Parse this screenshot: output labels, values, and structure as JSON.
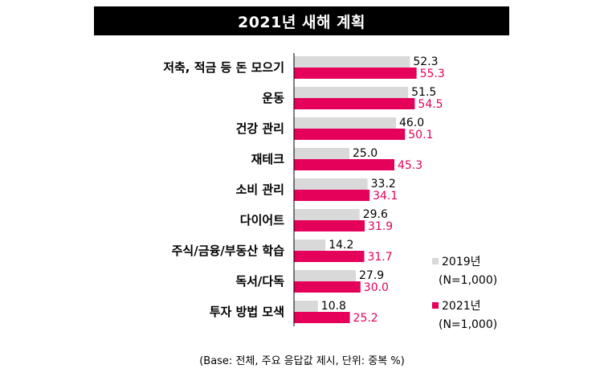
{
  "title": "2021년 새해 계획",
  "footnote": "(Base: 전체, 주요 응답값 제시, 단위: 중복 %)",
  "colors": {
    "series_2019": "#d9d9d9",
    "series_2021": "#e5005a",
    "axis": "#000000"
  },
  "chart_data": {
    "type": "bar",
    "orientation": "horizontal",
    "title": "2021년 새해 계획",
    "categories": [
      "저축, 적금 등 돈 모으기",
      "운동",
      "건강 관리",
      "재테크",
      "소비 관리",
      "다이어트",
      "주식/금융/부동산 학습",
      "독서/다독",
      "투자 방법 모색"
    ],
    "series": [
      {
        "name": "2019년 (N=1,000)",
        "values": [
          52.3,
          51.5,
          46.0,
          25.0,
          33.2,
          29.6,
          14.2,
          27.9,
          10.8
        ]
      },
      {
        "name": "2021년 (N=1,000)",
        "values": [
          55.3,
          54.5,
          50.1,
          45.3,
          34.1,
          31.9,
          31.7,
          30.0,
          25.2
        ]
      }
    ],
    "value_labels": [
      [
        "52.3",
        "51.5",
        "46.0",
        "25.0",
        "33.2",
        "29.6",
        "14.2",
        "27.9",
        "10.8"
      ],
      [
        "55.3",
        "54.5",
        "50.1",
        "45.3",
        "34.1",
        "31.9",
        "31.7",
        "30.0",
        "25.2"
      ]
    ],
    "xlim": [
      0,
      100
    ],
    "grid": false,
    "legend_position": "bottom-right",
    "legend": [
      {
        "line1": "2019년",
        "line2": "(N=1,000)"
      },
      {
        "line1": "2021년",
        "line2": "(N=1,000)"
      }
    ]
  }
}
